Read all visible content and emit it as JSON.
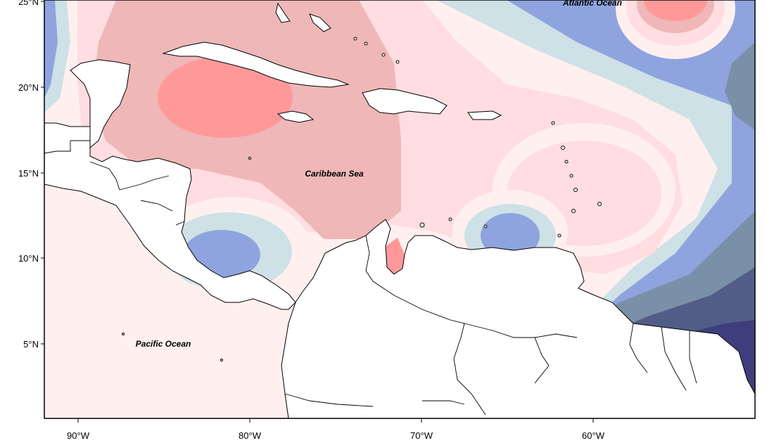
{
  "map": {
    "labels": {
      "caribbean": "Caribbean Sea",
      "pacific": "Pacific Ocean",
      "atlantic": "Atlantic Ocean"
    },
    "lat_ticks": [
      "25°N",
      "20°N",
      "15°N",
      "10°N",
      "5°N"
    ],
    "lon_ticks": [
      "90°W",
      "80°W",
      "70°W",
      "60°W"
    ],
    "colors": {
      "anom_pos_strong": "#ff9999",
      "anom_pos_mid": "#efb7b7",
      "anom_pos_weak": "#ffdde0",
      "anom_pos_faint": "#fff0ef",
      "anom_neg_faint": "#cde1e6",
      "anom_neg_weak": "#8fa4de",
      "anom_neg_mid": "#7990a8",
      "anom_neg_strong": "#525d87",
      "anom_neg_extreme": "#3f3e7c",
      "land": "#ffffff"
    }
  }
}
